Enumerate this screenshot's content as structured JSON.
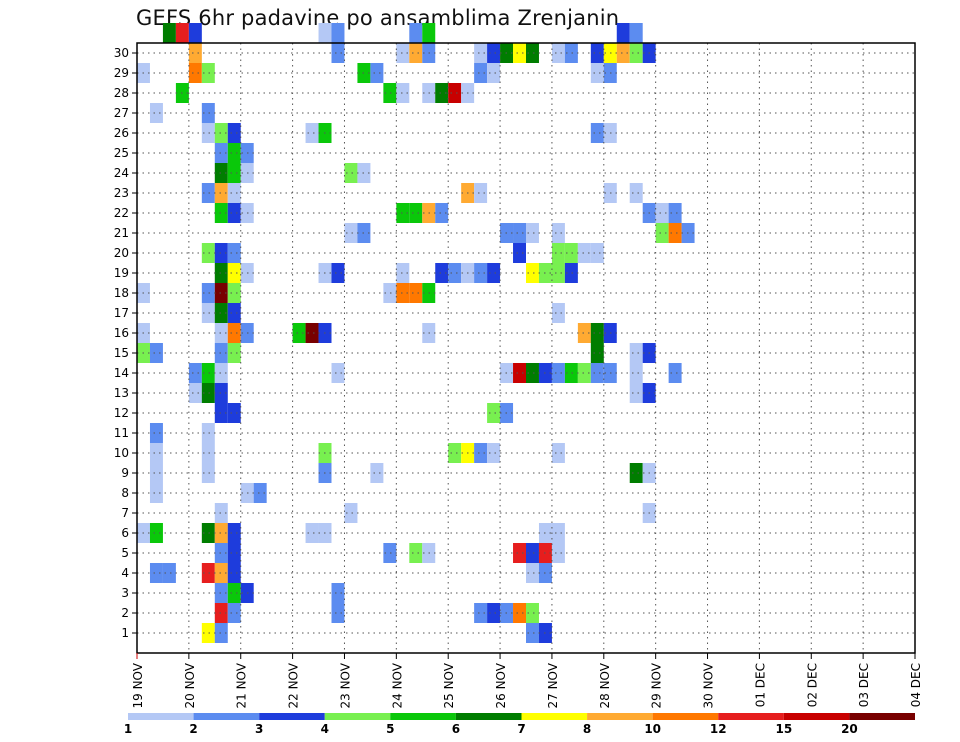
{
  "title": "GEFS 6hr padavine po ansamblima Zrenjanin",
  "chart_data": {
    "type": "heatmap",
    "title": "GEFS 6hr padavine po ansamblima Zrenjanin",
    "xlabel": "",
    "ylabel": "",
    "x_tick_labels": [
      "19 NOV",
      "20 NOV",
      "21 NOV",
      "22 NOV",
      "23 NOV",
      "24 NOV",
      "25 NOV",
      "26 NOV",
      "27 NOV",
      "28 NOV",
      "29 NOV",
      "30 NOV",
      "01 DEC",
      "02 DEC",
      "03 DEC",
      "04 DEC"
    ],
    "y_tick_labels": [
      "1",
      "2",
      "3",
      "4",
      "5",
      "6",
      "7",
      "8",
      "9",
      "10",
      "11",
      "12",
      "13",
      "14",
      "15",
      "16",
      "17",
      "18",
      "19",
      "20",
      "21",
      "22",
      "23",
      "24",
      "25",
      "26",
      "27",
      "28",
      "29",
      "30"
    ],
    "steps_per_day": 4,
    "ylim": [
      0,
      30
    ],
    "grid": true,
    "legend": "bottom colorbar",
    "colorbar": {
      "levels": [
        "1",
        "2",
        "3",
        "4",
        "5",
        "6",
        "7",
        "8",
        "10",
        "12",
        "15",
        "20"
      ],
      "colors": [
        "#b4c8f5",
        "#5c8cf0",
        "#1e3cdc",
        "#78f050",
        "#0ac80a",
        "#007d00",
        "#ffff00",
        "#ffaa32",
        "#ff7800",
        "#e61e1e",
        "#c80000",
        "#780000"
      ]
    },
    "cell_colors": [
      "#b4c8f5",
      "#5c8cf0",
      "#1e3cdc",
      "#78f050",
      "#0ac80a",
      "#007d00",
      "#ffff00",
      "#ffaa32",
      "#ff7800",
      "#e61e1e",
      "#c80000",
      "#780000"
    ],
    "cells": [
      [
        2,
        30,
        5
      ],
      [
        3,
        30,
        9
      ],
      [
        4,
        30,
        2
      ],
      [
        14,
        30,
        0
      ],
      [
        15,
        30,
        1
      ],
      [
        21,
        30,
        1
      ],
      [
        22,
        30,
        4
      ],
      [
        37,
        30,
        2
      ],
      [
        38,
        30,
        1
      ],
      [
        4,
        29,
        7
      ],
      [
        15,
        29,
        1
      ],
      [
        20,
        29,
        0
      ],
      [
        21,
        29,
        7
      ],
      [
        22,
        29,
        1
      ],
      [
        26,
        29,
        0
      ],
      [
        27,
        29,
        2
      ],
      [
        28,
        29,
        5
      ],
      [
        29,
        29,
        6
      ],
      [
        30,
        29,
        5
      ],
      [
        32,
        29,
        0
      ],
      [
        33,
        29,
        1
      ],
      [
        35,
        29,
        2
      ],
      [
        36,
        29,
        6
      ],
      [
        37,
        29,
        7
      ],
      [
        38,
        29,
        3
      ],
      [
        39,
        29,
        2
      ],
      [
        0,
        28,
        0
      ],
      [
        4,
        28,
        8
      ],
      [
        5,
        28,
        3
      ],
      [
        17,
        28,
        4
      ],
      [
        18,
        28,
        1
      ],
      [
        26,
        28,
        1
      ],
      [
        27,
        28,
        0
      ],
      [
        35,
        28,
        0
      ],
      [
        36,
        28,
        1
      ],
      [
        3,
        27,
        4
      ],
      [
        19,
        27,
        4
      ],
      [
        20,
        27,
        0
      ],
      [
        22,
        27,
        0
      ],
      [
        23,
        27,
        5
      ],
      [
        24,
        27,
        10
      ],
      [
        25,
        27,
        0
      ],
      [
        1,
        26,
        0
      ],
      [
        5,
        26,
        1
      ],
      [
        5,
        25,
        0
      ],
      [
        6,
        25,
        3
      ],
      [
        7,
        25,
        2
      ],
      [
        13,
        25,
        0
      ],
      [
        14,
        25,
        4
      ],
      [
        35,
        25,
        1
      ],
      [
        36,
        25,
        0
      ],
      [
        6,
        24,
        1
      ],
      [
        7,
        24,
        4
      ],
      [
        8,
        24,
        1
      ],
      [
        6,
        23,
        5
      ],
      [
        7,
        23,
        4
      ],
      [
        8,
        23,
        0
      ],
      [
        16,
        23,
        3
      ],
      [
        17,
        23,
        0
      ],
      [
        5,
        22,
        1
      ],
      [
        6,
        22,
        7
      ],
      [
        7,
        22,
        0
      ],
      [
        25,
        22,
        7
      ],
      [
        26,
        22,
        0
      ],
      [
        36,
        22,
        0
      ],
      [
        38,
        22,
        0
      ],
      [
        6,
        21,
        4
      ],
      [
        7,
        21,
        2
      ],
      [
        8,
        21,
        0
      ],
      [
        20,
        21,
        4
      ],
      [
        21,
        21,
        4
      ],
      [
        22,
        21,
        7
      ],
      [
        23,
        21,
        1
      ],
      [
        39,
        21,
        1
      ],
      [
        40,
        21,
        0
      ],
      [
        41,
        21,
        1
      ],
      [
        16,
        20,
        0
      ],
      [
        17,
        20,
        1
      ],
      [
        28,
        20,
        1
      ],
      [
        29,
        20,
        1
      ],
      [
        30,
        20,
        0
      ],
      [
        32,
        20,
        0
      ],
      [
        40,
        20,
        3
      ],
      [
        41,
        20,
        8
      ],
      [
        42,
        20,
        1
      ],
      [
        5,
        19,
        3
      ],
      [
        6,
        19,
        2
      ],
      [
        7,
        19,
        1
      ],
      [
        29,
        19,
        2
      ],
      [
        32,
        19,
        3
      ],
      [
        33,
        19,
        3
      ],
      [
        34,
        19,
        0
      ],
      [
        35,
        19,
        0
      ],
      [
        6,
        18,
        5
      ],
      [
        7,
        18,
        6
      ],
      [
        8,
        18,
        0
      ],
      [
        14,
        18,
        0
      ],
      [
        15,
        18,
        2
      ],
      [
        20,
        18,
        0
      ],
      [
        23,
        18,
        2
      ],
      [
        24,
        18,
        1
      ],
      [
        25,
        18,
        0
      ],
      [
        26,
        18,
        1
      ],
      [
        27,
        18,
        2
      ],
      [
        30,
        18,
        6
      ],
      [
        31,
        18,
        3
      ],
      [
        32,
        18,
        3
      ],
      [
        33,
        18,
        2
      ],
      [
        0,
        17,
        0
      ],
      [
        5,
        17,
        1
      ],
      [
        6,
        17,
        11
      ],
      [
        7,
        17,
        3
      ],
      [
        19,
        17,
        0
      ],
      [
        20,
        17,
        8
      ],
      [
        21,
        17,
        8
      ],
      [
        22,
        17,
        4
      ],
      [
        5,
        16,
        0
      ],
      [
        6,
        16,
        5
      ],
      [
        7,
        16,
        2
      ],
      [
        32,
        16,
        0
      ],
      [
        0,
        15,
        0
      ],
      [
        6,
        15,
        0
      ],
      [
        7,
        15,
        8
      ],
      [
        8,
        15,
        1
      ],
      [
        12,
        15,
        4
      ],
      [
        13,
        15,
        11
      ],
      [
        14,
        15,
        2
      ],
      [
        22,
        15,
        0
      ],
      [
        34,
        15,
        7
      ],
      [
        35,
        15,
        5
      ],
      [
        36,
        15,
        2
      ],
      [
        0,
        14,
        3
      ],
      [
        1,
        14,
        1
      ],
      [
        6,
        14,
        1
      ],
      [
        7,
        14,
        3
      ],
      [
        35,
        14,
        5
      ],
      [
        38,
        14,
        0
      ],
      [
        39,
        14,
        2
      ],
      [
        4,
        13,
        1
      ],
      [
        5,
        13,
        4
      ],
      [
        6,
        13,
        0
      ],
      [
        15,
        13,
        0
      ],
      [
        28,
        13,
        0
      ],
      [
        29,
        13,
        10
      ],
      [
        30,
        13,
        5
      ],
      [
        31,
        13,
        2
      ],
      [
        32,
        13,
        1
      ],
      [
        33,
        13,
        4
      ],
      [
        34,
        13,
        3
      ],
      [
        35,
        13,
        1
      ],
      [
        36,
        13,
        1
      ],
      [
        38,
        13,
        0
      ],
      [
        41,
        13,
        1
      ],
      [
        4,
        12,
        0
      ],
      [
        5,
        12,
        5
      ],
      [
        6,
        12,
        2
      ],
      [
        38,
        12,
        0
      ],
      [
        39,
        12,
        2
      ],
      [
        6,
        11,
        2
      ],
      [
        7,
        11,
        2
      ],
      [
        27,
        11,
        3
      ],
      [
        28,
        11,
        1
      ],
      [
        5,
        10,
        0
      ],
      [
        1,
        10,
        1
      ],
      [
        1,
        9,
        0
      ],
      [
        5,
        9,
        0
      ],
      [
        14,
        9,
        3
      ],
      [
        24,
        9,
        3
      ],
      [
        25,
        9,
        6
      ],
      [
        26,
        9,
        1
      ],
      [
        27,
        9,
        0
      ],
      [
        32,
        9,
        0
      ],
      [
        1,
        8,
        0
      ],
      [
        5,
        8,
        0
      ],
      [
        14,
        8,
        1
      ],
      [
        18,
        8,
        0
      ],
      [
        38,
        8,
        5
      ],
      [
        39,
        8,
        0
      ],
      [
        1,
        7,
        0
      ],
      [
        8,
        7,
        0
      ],
      [
        9,
        7,
        1
      ],
      [
        6,
        6,
        0
      ],
      [
        16,
        6,
        0
      ],
      [
        39,
        6,
        0
      ],
      [
        0,
        5,
        0
      ],
      [
        1,
        5,
        4
      ],
      [
        5,
        5,
        5
      ],
      [
        6,
        5,
        7
      ],
      [
        7,
        5,
        2
      ],
      [
        13,
        5,
        0
      ],
      [
        14,
        5,
        0
      ],
      [
        31,
        5,
        0
      ],
      [
        32,
        5,
        0
      ],
      [
        6,
        4,
        1
      ],
      [
        7,
        4,
        2
      ],
      [
        19,
        4,
        1
      ],
      [
        21,
        4,
        3
      ],
      [
        22,
        4,
        0
      ],
      [
        29,
        4,
        9
      ],
      [
        30,
        4,
        2
      ],
      [
        31,
        4,
        9
      ],
      [
        32,
        4,
        0
      ],
      [
        1,
        3,
        1
      ],
      [
        2,
        3,
        1
      ],
      [
        5,
        3,
        9
      ],
      [
        6,
        3,
        7
      ],
      [
        7,
        3,
        2
      ],
      [
        30,
        3,
        0
      ],
      [
        31,
        3,
        1
      ],
      [
        6,
        2,
        1
      ],
      [
        7,
        2,
        4
      ],
      [
        8,
        2,
        2
      ],
      [
        15,
        2,
        1
      ],
      [
        6,
        1,
        9
      ],
      [
        7,
        1,
        1
      ],
      [
        15,
        1,
        1
      ],
      [
        26,
        1,
        1
      ],
      [
        27,
        1,
        2
      ],
      [
        28,
        1,
        1
      ],
      [
        29,
        1,
        8
      ],
      [
        30,
        1,
        3
      ],
      [
        5,
        0,
        6
      ],
      [
        6,
        0,
        1
      ],
      [
        30,
        0,
        1
      ],
      [
        31,
        0,
        2
      ]
    ]
  }
}
